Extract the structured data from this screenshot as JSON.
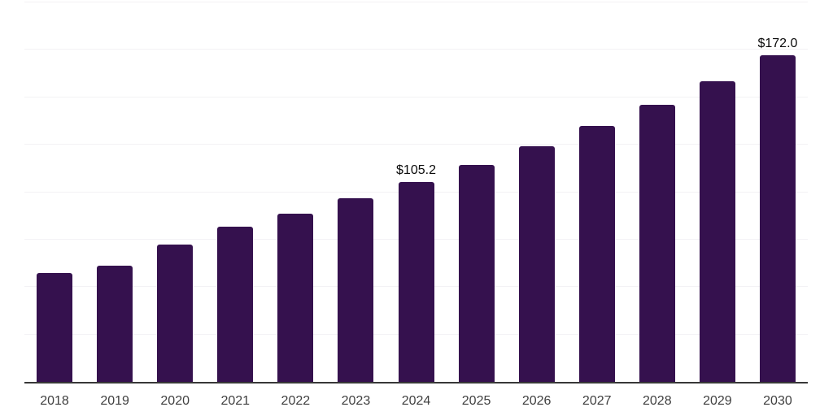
{
  "chart_data": {
    "type": "bar",
    "title": "",
    "xlabel": "",
    "ylabel": "",
    "categories": [
      "2018",
      "2019",
      "2020",
      "2021",
      "2022",
      "2023",
      "2024",
      "2025",
      "2026",
      "2027",
      "2028",
      "2029",
      "2030"
    ],
    "values": [
      57.5,
      61.3,
      72.4,
      81.8,
      88.8,
      96.9,
      105.2,
      114.3,
      124.1,
      134.7,
      146.2,
      158.6,
      172.0
    ],
    "data_labels": [
      "",
      "",
      "",
      "",
      "",
      "",
      "$105.2",
      "",
      "",
      "",
      "",
      "",
      "$172.0"
    ],
    "ylim": [
      0,
      200
    ],
    "gridline_step": 25,
    "grid": true,
    "legend": false,
    "y_axis_labels_shown": false,
    "colors": {
      "bar": "#35114e",
      "background": "#ffffff",
      "gridline": "#f3f2f5",
      "axis_line": "#383838",
      "tick_label": "#3f3f3f",
      "data_label": "#0b0b0b"
    }
  }
}
